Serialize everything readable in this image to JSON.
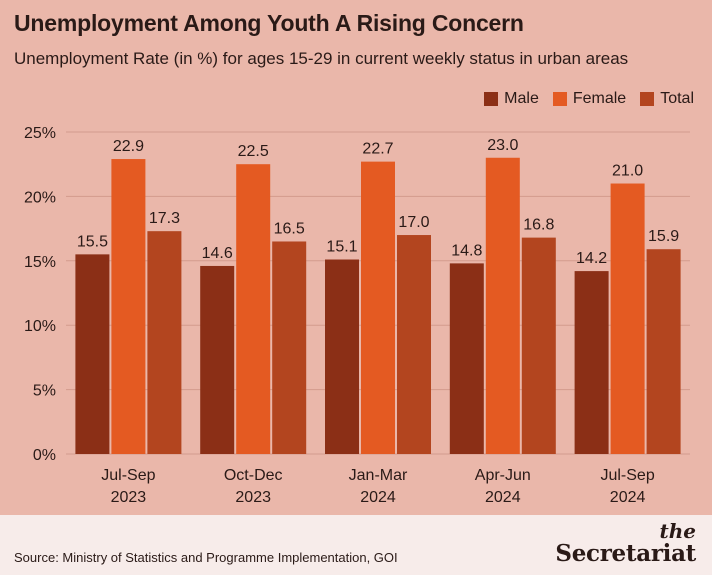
{
  "header": {
    "title": "Unemployment Among Youth A Rising Concern",
    "subtitle": "Unemployment Rate (in %) for ages 15-29 in current weekly status in urban areas"
  },
  "footer": {
    "source": "Source: Ministry of Statistics and Programme Implementation, GOI",
    "brand_the": "the",
    "brand_name": "Secretariat"
  },
  "colors": {
    "background": "#eab7aa",
    "male": "#8b2f16",
    "female": "#e45a22",
    "total": "#b3451f",
    "grid": "#d39b8d"
  },
  "chart_data": {
    "type": "bar",
    "categories": [
      [
        "Jul-Sep",
        "2023"
      ],
      [
        "Oct-Dec",
        "2023"
      ],
      [
        "Jan-Mar",
        "2024"
      ],
      [
        "Apr-Jun",
        "2024"
      ],
      [
        "Jul-Sep",
        "2024"
      ]
    ],
    "series": [
      {
        "name": "Male",
        "color": "#8b2f16",
        "values": [
          15.5,
          14.6,
          15.1,
          14.8,
          14.2
        ]
      },
      {
        "name": "Female",
        "color": "#e45a22",
        "values": [
          22.9,
          22.5,
          22.7,
          23.0,
          21.0
        ]
      },
      {
        "name": "Total",
        "color": "#b3451f",
        "values": [
          17.3,
          16.5,
          17.0,
          16.8,
          15.9
        ]
      }
    ],
    "ylim": [
      0,
      25
    ],
    "yticks": [
      "0%",
      "5%",
      "10%",
      "15%",
      "20%",
      "25%"
    ],
    "ytick_values": [
      0,
      5,
      10,
      15,
      20,
      25
    ],
    "grid": true,
    "legend": "top-right",
    "data_labels": true
  }
}
